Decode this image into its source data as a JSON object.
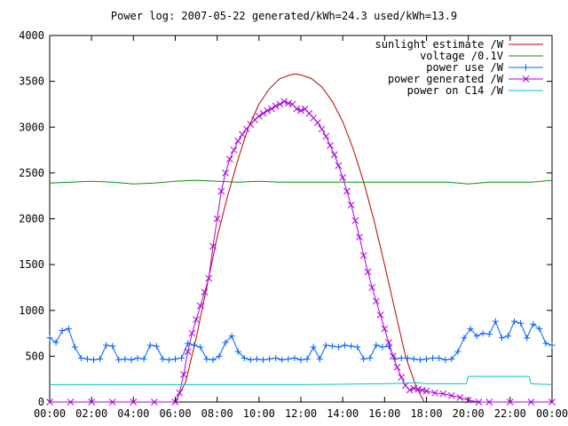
{
  "chart_data": {
    "type": "line",
    "title": "Power log: 2007-05-22 generated/kWh=24.3 used/kWh=13.9",
    "xlabel": "",
    "ylabel": "",
    "xlim": [
      0,
      24
    ],
    "ylim": [
      0,
      4000
    ],
    "xticks": [
      0,
      2,
      4,
      6,
      8,
      10,
      12,
      14,
      16,
      18,
      20,
      22,
      24
    ],
    "xtick_labels": [
      "00:00",
      "02:00",
      "04:00",
      "06:00",
      "08:00",
      "10:00",
      "12:00",
      "14:00",
      "16:00",
      "18:00",
      "20:00",
      "22:00",
      "00:00"
    ],
    "yticks": [
      0,
      500,
      1000,
      1500,
      2000,
      2500,
      3000,
      3500,
      4000
    ],
    "ytick_labels": [
      "0",
      "500",
      "1000",
      "1500",
      "2000",
      "2500",
      "3000",
      "3500",
      "4000"
    ],
    "grid": false,
    "legend_position": "top-right",
    "series": [
      {
        "name": "sunlight estimate /W",
        "color": "#bb0000",
        "marker": "none",
        "x": [
          6.0,
          6.5,
          7.0,
          7.5,
          8.0,
          8.5,
          9.0,
          9.5,
          10.0,
          10.5,
          11.0,
          11.5,
          11.75,
          12.0,
          12.5,
          13.0,
          13.5,
          14.0,
          14.5,
          15.0,
          15.5,
          16.0,
          16.5,
          17.0,
          17.5,
          17.9
        ],
        "y": [
          0,
          220,
          700,
          1250,
          1800,
          2250,
          2650,
          3000,
          3250,
          3420,
          3530,
          3570,
          3580,
          3570,
          3530,
          3440,
          3280,
          3060,
          2760,
          2400,
          1980,
          1500,
          1000,
          500,
          170,
          0
        ]
      },
      {
        "name": "voltage /0.1V",
        "color": "#009900",
        "marker": "none",
        "x": [
          0,
          1,
          2,
          3,
          4,
          5,
          6,
          7,
          8,
          9,
          10,
          11,
          12,
          13,
          14,
          15,
          16,
          17,
          18,
          19,
          20,
          21,
          22,
          23,
          24
        ],
        "y": [
          2390,
          2400,
          2410,
          2400,
          2380,
          2390,
          2410,
          2420,
          2410,
          2400,
          2410,
          2400,
          2400,
          2400,
          2400,
          2400,
          2400,
          2400,
          2400,
          2400,
          2380,
          2400,
          2400,
          2400,
          2420
        ]
      },
      {
        "name": "power use /W",
        "color": "#0060ff",
        "marker": "plus",
        "x": [
          0.0,
          0.3,
          0.6,
          0.9,
          1.2,
          1.5,
          1.8,
          2.1,
          2.4,
          2.7,
          3.0,
          3.3,
          3.6,
          3.9,
          4.2,
          4.5,
          4.8,
          5.1,
          5.4,
          5.7,
          6.0,
          6.3,
          6.6,
          6.9,
          7.2,
          7.5,
          7.8,
          8.1,
          8.4,
          8.7,
          9.0,
          9.3,
          9.6,
          9.9,
          10.2,
          10.5,
          10.8,
          11.1,
          11.4,
          11.7,
          12.0,
          12.3,
          12.6,
          12.9,
          13.2,
          13.5,
          13.8,
          14.1,
          14.4,
          14.7,
          15.0,
          15.3,
          15.6,
          15.9,
          16.2,
          16.5,
          16.8,
          17.1,
          17.4,
          17.7,
          18.0,
          18.3,
          18.6,
          18.9,
          19.2,
          19.5,
          19.8,
          20.1,
          20.4,
          20.7,
          21.0,
          21.3,
          21.6,
          21.9,
          22.2,
          22.5,
          22.8,
          23.1,
          23.4,
          23.7,
          24.0
        ],
        "y": [
          700,
          650,
          780,
          800,
          600,
          480,
          470,
          460,
          470,
          620,
          610,
          460,
          470,
          460,
          480,
          470,
          620,
          610,
          470,
          460,
          470,
          480,
          640,
          620,
          600,
          470,
          460,
          500,
          650,
          720,
          550,
          480,
          460,
          470,
          460,
          470,
          480,
          460,
          470,
          480,
          460,
          470,
          600,
          470,
          620,
          610,
          600,
          620,
          610,
          600,
          470,
          480,
          620,
          600,
          610,
          470,
          480,
          480,
          470,
          460,
          470,
          480,
          480,
          460,
          470,
          550,
          700,
          800,
          720,
          750,
          740,
          880,
          700,
          720,
          880,
          860,
          700,
          850,
          800,
          640,
          620
        ]
      },
      {
        "name": "power generated /W",
        "color": "#aa00dd",
        "marker": "cross",
        "x": [
          0.0,
          1.0,
          2.0,
          3.0,
          4.0,
          5.0,
          6.0,
          6.2,
          6.4,
          6.6,
          6.8,
          7.0,
          7.2,
          7.4,
          7.6,
          7.8,
          8.0,
          8.2,
          8.4,
          8.6,
          8.8,
          9.0,
          9.2,
          9.4,
          9.6,
          9.8,
          10.0,
          10.2,
          10.4,
          10.6,
          10.8,
          11.0,
          11.2,
          11.4,
          11.6,
          11.8,
          12.0,
          12.2,
          12.4,
          12.6,
          12.8,
          13.0,
          13.2,
          13.4,
          13.6,
          13.8,
          14.0,
          14.2,
          14.4,
          14.6,
          14.8,
          15.0,
          15.2,
          15.4,
          15.6,
          15.8,
          16.0,
          16.2,
          16.4,
          16.6,
          16.8,
          17.0,
          17.2,
          17.4,
          17.6,
          17.8,
          18.0,
          18.4,
          18.8,
          19.2,
          19.6,
          20.0,
          20.5,
          21.0,
          22.0,
          23.0,
          24.0
        ],
        "y": [
          0,
          0,
          0,
          0,
          0,
          0,
          0,
          100,
          300,
          550,
          750,
          900,
          1050,
          1200,
          1350,
          1700,
          2000,
          2300,
          2500,
          2650,
          2750,
          2850,
          2920,
          2980,
          3030,
          3080,
          3120,
          3150,
          3180,
          3200,
          3230,
          3250,
          3280,
          3260,
          3250,
          3200,
          3180,
          3200,
          3150,
          3100,
          3050,
          2980,
          2900,
          2800,
          2700,
          2580,
          2450,
          2300,
          2150,
          1980,
          1800,
          1600,
          1420,
          1250,
          1100,
          950,
          800,
          650,
          500,
          380,
          270,
          180,
          130,
          150,
          140,
          130,
          120,
          100,
          90,
          70,
          50,
          20,
          0,
          0,
          0,
          0,
          0
        ]
      },
      {
        "name": "power on C14 /W",
        "color": "#00c8c8",
        "marker": "none",
        "x": [
          0,
          2,
          4,
          6,
          8,
          10,
          12,
          14,
          16,
          17,
          17.5,
          18,
          19,
          19.9,
          20.0,
          21,
          22,
          22.9,
          23.0,
          24
        ],
        "y": [
          190,
          190,
          190,
          190,
          190,
          190,
          190,
          195,
          200,
          205,
          210,
          200,
          200,
          200,
          280,
          280,
          280,
          280,
          200,
          190
        ]
      }
    ]
  }
}
